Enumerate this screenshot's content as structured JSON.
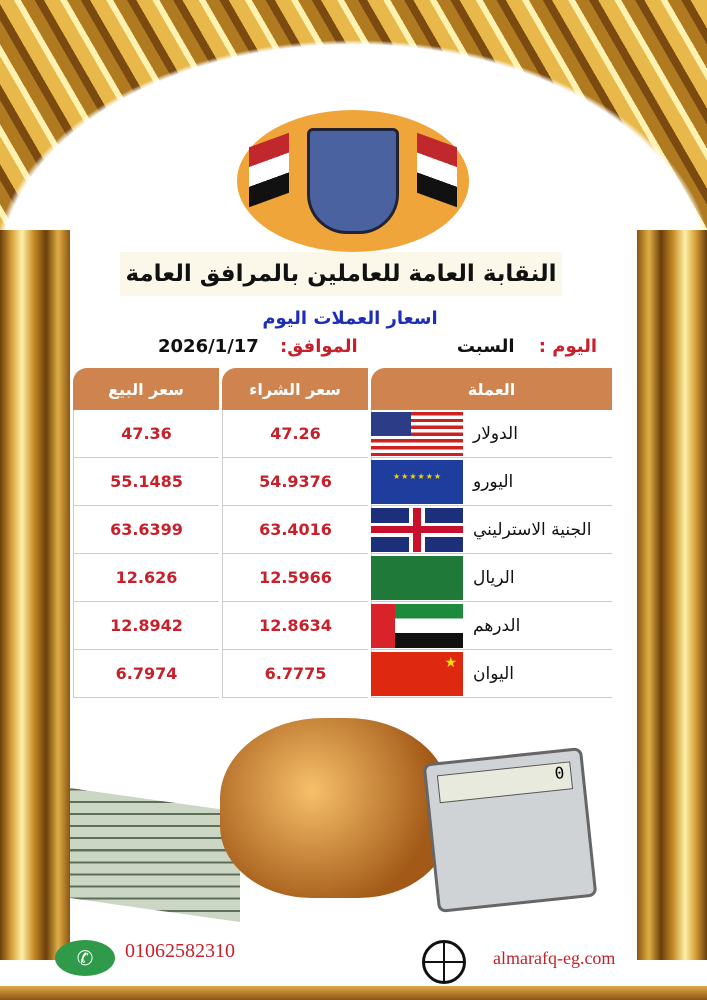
{
  "header": {
    "organization": "النقابة العامة للعاملين بالمرافق العامة",
    "subtitle": "اسعار العملات اليوم"
  },
  "date_row": {
    "day_label": "اليوم :",
    "day_value": "السبت",
    "date_label": "الموافق:",
    "date_value": "2026/1/17"
  },
  "table": {
    "headers": {
      "currency": "العملة",
      "buy": "سعر الشراء",
      "sell": "سعر البيع"
    },
    "rows": [
      {
        "flag": "us-flag",
        "name": "الدولار",
        "buy": "47.26",
        "sell": "47.36"
      },
      {
        "flag": "eu-flag",
        "name": "اليورو",
        "buy": "54.9376",
        "sell": "55.1485"
      },
      {
        "flag": "uk-flag",
        "name": "الجنية الاسترليني",
        "buy": "63.4016",
        "sell": "63.6399"
      },
      {
        "flag": "sa-flag",
        "name": "الريال",
        "buy": "12.5966",
        "sell": "12.626"
      },
      {
        "flag": "ae-flag",
        "name": "الدرهم",
        "buy": "12.8634",
        "sell": "12.8942"
      },
      {
        "flag": "cn-flag",
        "name": "اليوان",
        "buy": "6.7775",
        "sell": "6.7974"
      }
    ]
  },
  "calculator_display": "0",
  "footer": {
    "phone": "01062582310",
    "website": "almarafq-eg.com"
  },
  "colors": {
    "header_cell": "#cf8450",
    "price": "#c8202a",
    "subtitle": "#1d2fb5",
    "logo_bg": "#f0a53a"
  }
}
